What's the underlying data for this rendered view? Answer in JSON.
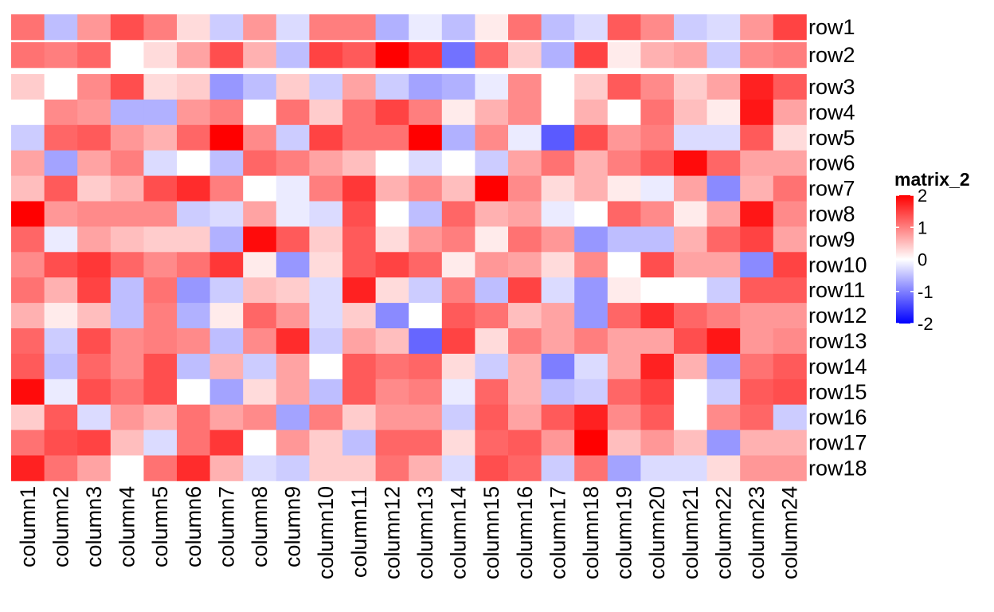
{
  "chart_data": {
    "type": "heatmap",
    "title": "",
    "xlabel": "",
    "ylabel": "",
    "rows": [
      "row1",
      "row2",
      "row3",
      "row4",
      "row5",
      "row6",
      "row7",
      "row8",
      "row9",
      "row10",
      "row11",
      "row12",
      "row13",
      "row14",
      "row15",
      "row16",
      "row17",
      "row18"
    ],
    "columns": [
      "column1",
      "column2",
      "column3",
      "column4",
      "column5",
      "column6",
      "column7",
      "column8",
      "column9",
      "column10",
      "column11",
      "column12",
      "column13",
      "column14",
      "column15",
      "column16",
      "column17",
      "column18",
      "column19",
      "column20",
      "column21",
      "column22",
      "column23",
      "column24"
    ],
    "row_splits": [
      [
        "row1"
      ],
      [
        "row2"
      ],
      [
        "row3",
        "row4",
        "row5",
        "row6",
        "row7",
        "row8",
        "row9",
        "row10",
        "row11",
        "row12",
        "row13",
        "row14",
        "row15",
        "row16",
        "row17",
        "row18"
      ]
    ],
    "values": [
      [
        1.0,
        -0.4,
        0.7,
        1.3,
        0.9,
        0.2,
        -0.3,
        0.7,
        -0.2,
        0.9,
        0.9,
        -0.5,
        -0.1,
        -0.4,
        0.1,
        1.0,
        -0.4,
        -0.2,
        1.2,
        0.8,
        -0.3,
        -0.2,
        0.7,
        1.4
      ],
      [
        1.0,
        0.9,
        1.1,
        0.0,
        0.2,
        0.6,
        1.3,
        0.5,
        -0.4,
        1.4,
        1.2,
        2.2,
        1.5,
        -1.0,
        1.1,
        0.3,
        -0.5,
        1.4,
        0.1,
        0.5,
        0.6,
        -0.3,
        0.8,
        0.9
      ],
      [
        0.3,
        0.0,
        0.8,
        1.3,
        0.2,
        0.3,
        -0.7,
        -0.4,
        0.3,
        -0.3,
        0.6,
        -0.3,
        -0.6,
        -0.5,
        -0.1,
        0.8,
        0.0,
        0.3,
        1.2,
        0.8,
        0.3,
        0.6,
        1.7,
        1.2
      ],
      [
        0.0,
        0.8,
        0.7,
        -0.5,
        -0.5,
        0.7,
        0.9,
        0.0,
        1.0,
        0.3,
        1.0,
        1.4,
        0.9,
        0.1,
        0.5,
        0.8,
        0.0,
        0.5,
        0.0,
        1.0,
        0.4,
        0.1,
        1.8,
        0.6
      ],
      [
        -0.3,
        1.1,
        1.2,
        0.7,
        0.5,
        1.1,
        2.2,
        0.8,
        -0.3,
        1.4,
        1.0,
        1.0,
        2.1,
        -0.5,
        0.8,
        -0.1,
        -1.2,
        1.3,
        0.7,
        0.9,
        -0.2,
        -0.2,
        1.2,
        0.2
      ],
      [
        0.6,
        -0.6,
        0.6,
        0.9,
        -0.2,
        0.0,
        -0.4,
        1.1,
        0.9,
        0.6,
        0.4,
        0.0,
        -0.2,
        0.0,
        -0.3,
        0.6,
        1.0,
        0.5,
        0.9,
        1.2,
        1.9,
        1.1,
        0.6,
        0.6
      ],
      [
        0.4,
        1.2,
        0.3,
        0.5,
        1.3,
        1.6,
        0.9,
        0.0,
        -0.1,
        0.9,
        1.5,
        0.5,
        0.8,
        0.4,
        2.3,
        0.8,
        0.2,
        0.5,
        0.1,
        -0.1,
        0.6,
        -0.8,
        0.5,
        1.0
      ],
      [
        2.3,
        0.7,
        0.8,
        0.8,
        0.8,
        -0.3,
        -0.2,
        0.6,
        -0.1,
        -0.2,
        1.3,
        0.0,
        -0.4,
        1.1,
        0.5,
        0.6,
        -0.1,
        0.0,
        1.1,
        0.8,
        0.1,
        0.6,
        1.8,
        0.8
      ],
      [
        1.1,
        -0.1,
        0.6,
        0.4,
        0.3,
        0.3,
        -0.5,
        1.9,
        1.2,
        0.3,
        1.2,
        0.2,
        0.7,
        0.9,
        0.1,
        1.0,
        0.7,
        -0.7,
        -0.4,
        -0.4,
        0.5,
        1.1,
        1.4,
        0.6
      ],
      [
        0.8,
        1.3,
        1.5,
        1.1,
        0.8,
        1.0,
        1.5,
        0.1,
        -0.7,
        0.2,
        1.2,
        1.4,
        1.1,
        0.1,
        0.7,
        0.6,
        0.2,
        0.8,
        0.0,
        1.3,
        0.6,
        0.6,
        -0.8,
        1.4
      ],
      [
        1.0,
        0.5,
        1.4,
        -0.4,
        1.0,
        -0.7,
        -0.3,
        0.4,
        0.3,
        -0.2,
        1.7,
        0.2,
        -0.3,
        0.9,
        -0.4,
        1.4,
        -0.2,
        -0.7,
        0.1,
        0.0,
        0.0,
        -0.3,
        1.2,
        1.2
      ],
      [
        0.5,
        0.1,
        0.4,
        -0.4,
        0.9,
        -0.5,
        0.1,
        1.1,
        0.7,
        -0.2,
        0.3,
        -0.8,
        0.0,
        1.2,
        1.0,
        0.4,
        0.6,
        -0.7,
        1.1,
        1.6,
        1.1,
        0.9,
        0.7,
        0.7
      ],
      [
        1.1,
        -0.3,
        1.3,
        0.8,
        0.9,
        0.8,
        -0.4,
        0.8,
        1.6,
        -0.3,
        0.6,
        0.4,
        -1.1,
        1.4,
        0.2,
        0.9,
        0.6,
        0.9,
        0.6,
        0.6,
        1.3,
        1.8,
        0.7,
        0.8
      ],
      [
        1.2,
        -0.4,
        1.1,
        0.8,
        1.3,
        -0.4,
        0.5,
        -0.3,
        0.6,
        0.0,
        1.2,
        1.0,
        1.1,
        0.2,
        -0.3,
        0.5,
        -0.9,
        -0.2,
        0.6,
        1.7,
        0.5,
        -0.6,
        1.0,
        1.2
      ],
      [
        1.9,
        -0.1,
        1.3,
        1.0,
        1.3,
        0.0,
        -0.6,
        0.2,
        0.6,
        -0.4,
        1.2,
        0.8,
        0.9,
        -0.1,
        1.1,
        0.5,
        -0.4,
        -0.3,
        1.1,
        1.4,
        0.0,
        -0.3,
        1.2,
        1.3
      ],
      [
        0.3,
        1.2,
        -0.2,
        0.7,
        0.5,
        1.0,
        0.6,
        0.8,
        -0.6,
        0.9,
        0.3,
        0.7,
        0.7,
        -0.3,
        1.2,
        0.6,
        1.2,
        1.7,
        0.8,
        1.2,
        0.0,
        0.8,
        1.1,
        -0.3
      ],
      [
        1.0,
        1.3,
        1.4,
        0.4,
        -0.2,
        1.0,
        1.5,
        0.0,
        0.7,
        0.3,
        -0.4,
        1.1,
        1.1,
        0.2,
        1.1,
        1.2,
        0.7,
        2.3,
        0.4,
        0.7,
        0.4,
        -0.7,
        0.5,
        0.5
      ],
      [
        1.7,
        1.0,
        0.6,
        0.0,
        1.0,
        1.6,
        0.5,
        -0.2,
        -0.3,
        0.3,
        0.3,
        1.0,
        0.5,
        -0.2,
        1.3,
        1.1,
        -0.3,
        1.0,
        -0.6,
        -0.2,
        -0.2,
        0.2,
        0.7,
        0.7
      ]
    ],
    "legend": {
      "title": "matrix_2",
      "ticks": [
        "2",
        "1",
        "0",
        "-1",
        "-2"
      ],
      "tick_values": [
        2,
        1,
        0,
        -1,
        -2
      ],
      "range": [
        -2,
        2
      ],
      "color_low": "#0000ff",
      "color_mid": "#ffffff",
      "color_high": "#ff0000"
    },
    "grid": false
  }
}
